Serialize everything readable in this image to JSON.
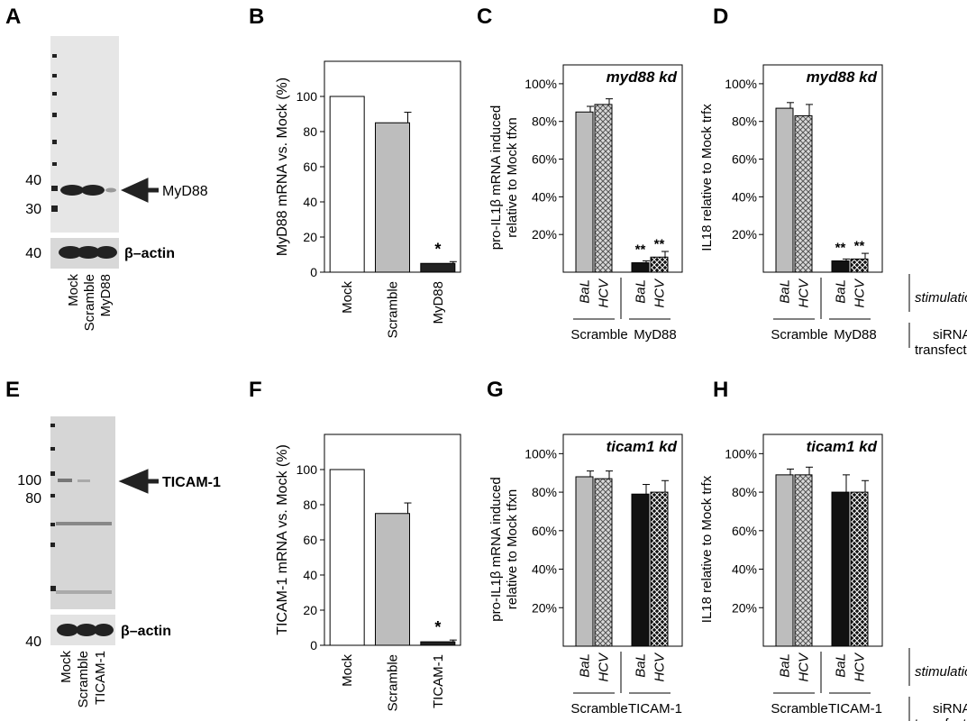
{
  "panels": {
    "A": {
      "letter": "A",
      "target": "MyD88",
      "loading": "β–actin",
      "lanes": [
        "Mock",
        "Scramble",
        "MyD88"
      ],
      "markers": [
        "40",
        "30"
      ],
      "loading_marker": "40"
    },
    "E": {
      "letter": "E",
      "target": "TICAM-1",
      "loading": "β–actin",
      "lanes": [
        "Mock",
        "Scramble",
        "TICAM-1"
      ],
      "markers": [
        "100",
        "80"
      ],
      "loading_marker": "40"
    },
    "B": {
      "letter": "B"
    },
    "C": {
      "letter": "C"
    },
    "D": {
      "letter": "D"
    },
    "F": {
      "letter": "F"
    },
    "G": {
      "letter": "G"
    },
    "H": {
      "letter": "H"
    }
  },
  "annotations": {
    "stimulation": "stimulation",
    "sirna_line1": "siRNA",
    "sirna_line2": "transfection",
    "star": "*",
    "dstar": "**"
  },
  "chart_data": [
    {
      "id": "B",
      "type": "bar",
      "ylabel": "MyD88 mRNA vs. Mock (%)",
      "categories": [
        "Mock",
        "Scramble",
        "MyD88"
      ],
      "values": [
        100,
        85,
        5
      ],
      "errors": [
        0,
        6,
        1
      ],
      "fills": [
        "#ffffff",
        "#bdbdbd",
        "#222222"
      ],
      "yticks": [
        "0",
        "20",
        "40",
        "60",
        "80",
        "100"
      ],
      "ylim": [
        0,
        120
      ],
      "significance": [
        "",
        "",
        "*"
      ]
    },
    {
      "id": "C",
      "type": "bar",
      "inset": "myd88 kd",
      "ylabel_line1": "pro-IL1β mRNA induced",
      "ylabel_line2": "relative to Mock tfxn",
      "yticks": [
        "20%",
        "40%",
        "60%",
        "80%",
        "100%"
      ],
      "ylim": [
        0,
        1.1
      ],
      "bars": [
        {
          "stim": "BaL",
          "value": 0.85,
          "error": 0.03,
          "pattern": "gray"
        },
        {
          "stim": "HCV",
          "value": 0.89,
          "error": 0.03,
          "pattern": "hatch-light"
        },
        {
          "stim": "BaL",
          "value": 0.05,
          "error": 0.01,
          "pattern": "black",
          "sig": "**"
        },
        {
          "stim": "HCV",
          "value": 0.08,
          "error": 0.03,
          "pattern": "hatch-dark",
          "sig": "**"
        }
      ],
      "groups": [
        "Scramble",
        "MyD88"
      ]
    },
    {
      "id": "D",
      "type": "bar",
      "inset": "myd88 kd",
      "ylabel_line1": "IL18 relative to Mock trfx",
      "yticks": [
        "20%",
        "40%",
        "60%",
        "80%",
        "100%"
      ],
      "ylim": [
        0,
        1.1
      ],
      "bars": [
        {
          "stim": "BaL",
          "value": 0.87,
          "error": 0.03,
          "pattern": "gray"
        },
        {
          "stim": "HCV",
          "value": 0.83,
          "error": 0.06,
          "pattern": "hatch-light"
        },
        {
          "stim": "BaL",
          "value": 0.06,
          "error": 0.01,
          "pattern": "black",
          "sig": "**"
        },
        {
          "stim": "HCV",
          "value": 0.07,
          "error": 0.03,
          "pattern": "hatch-dark",
          "sig": "**"
        }
      ],
      "groups": [
        "Scramble",
        "MyD88"
      ]
    },
    {
      "id": "F",
      "type": "bar",
      "ylabel": "TICAM-1 mRNA vs. Mock (%)",
      "categories": [
        "Mock",
        "Scramble",
        "TICAM-1"
      ],
      "values": [
        100,
        75,
        2
      ],
      "errors": [
        0,
        6,
        1
      ],
      "fills": [
        "#ffffff",
        "#bdbdbd",
        "#222222"
      ],
      "yticks": [
        "0",
        "20",
        "40",
        "60",
        "80",
        "100"
      ],
      "ylim": [
        0,
        120
      ],
      "significance": [
        "",
        "",
        "*"
      ]
    },
    {
      "id": "G",
      "type": "bar",
      "inset": "ticam1 kd",
      "ylabel_line1": "pro-IL1β mRNA induced",
      "ylabel_line2": "relative to Mock tfxn",
      "yticks": [
        "20%",
        "40%",
        "60%",
        "80%",
        "100%"
      ],
      "ylim": [
        0,
        1.1
      ],
      "bars": [
        {
          "stim": "BaL",
          "value": 0.88,
          "error": 0.03,
          "pattern": "gray"
        },
        {
          "stim": "HCV",
          "value": 0.87,
          "error": 0.04,
          "pattern": "hatch-light"
        },
        {
          "stim": "BaL",
          "value": 0.79,
          "error": 0.05,
          "pattern": "black"
        },
        {
          "stim": "HCV",
          "value": 0.8,
          "error": 0.06,
          "pattern": "hatch-dark"
        }
      ],
      "groups": [
        "Scramble",
        "TICAM-1"
      ]
    },
    {
      "id": "H",
      "type": "bar",
      "inset": "ticam1 kd",
      "ylabel_line1": "IL18 relative to Mock trfx",
      "yticks": [
        "20%",
        "40%",
        "60%",
        "80%",
        "100%"
      ],
      "ylim": [
        0,
        1.1
      ],
      "bars": [
        {
          "stim": "BaL",
          "value": 0.89,
          "error": 0.03,
          "pattern": "gray"
        },
        {
          "stim": "HCV",
          "value": 0.89,
          "error": 0.04,
          "pattern": "hatch-light"
        },
        {
          "stim": "BaL",
          "value": 0.8,
          "error": 0.09,
          "pattern": "black"
        },
        {
          "stim": "HCV",
          "value": 0.8,
          "error": 0.06,
          "pattern": "hatch-dark"
        }
      ],
      "groups": [
        "Scramble",
        "TICAM-1"
      ]
    }
  ]
}
